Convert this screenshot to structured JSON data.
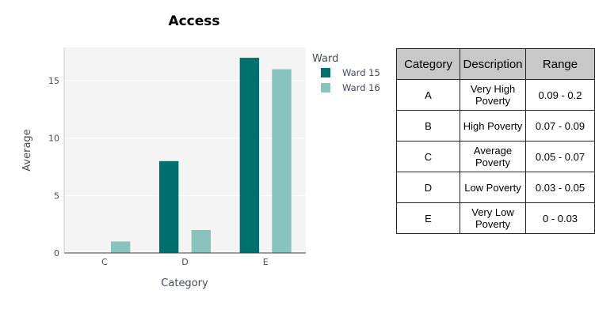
{
  "chart_data": {
    "type": "bar",
    "title": "Access",
    "xlabel": "Category",
    "ylabel": "Average",
    "categories": [
      "C",
      "D",
      "E"
    ],
    "series": [
      {
        "name": "Ward 15",
        "values": [
          0,
          8,
          17
        ],
        "color": "#00706f"
      },
      {
        "name": "Ward 16",
        "values": [
          1,
          2,
          16
        ],
        "color": "#88c4bd"
      }
    ],
    "ylim": [
      0,
      17.9
    ],
    "yticks": [
      0,
      5,
      10,
      15
    ],
    "legend": {
      "title": "Ward",
      "placement": "right"
    },
    "grid": true,
    "plot_bg": "#f4f4f4"
  },
  "table": {
    "headers": [
      "Category",
      "Description",
      "Range"
    ],
    "rows": [
      [
        "A",
        "Very High Poverty",
        "0.09 - 0.2"
      ],
      [
        "B",
        "High Poverty",
        "0.07 - 0.09"
      ],
      [
        "C",
        "Average Poverty",
        "0.05 - 0.07"
      ],
      [
        "D",
        "Low Poverty",
        "0.03 - 0.05"
      ],
      [
        "E",
        "Very Low Poverty",
        "0 - 0.03"
      ]
    ]
  }
}
